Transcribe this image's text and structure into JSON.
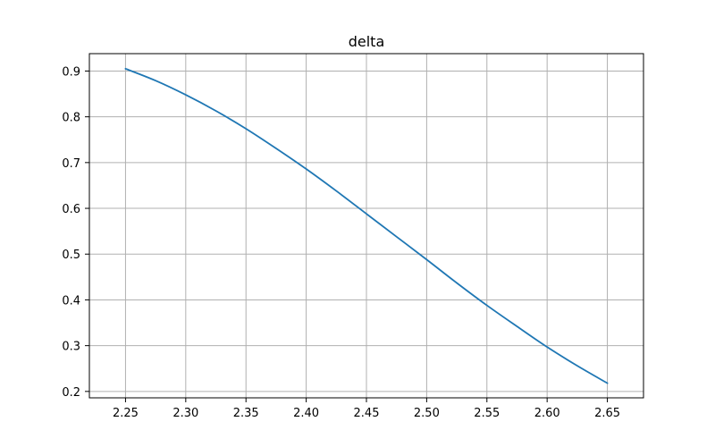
{
  "chart_data": {
    "type": "line",
    "title": "delta",
    "xlabel": "",
    "ylabel": "",
    "xlim": [
      2.22,
      2.68
    ],
    "ylim": [
      0.186,
      0.938
    ],
    "x_ticks": [
      2.25,
      2.3,
      2.35,
      2.4,
      2.45,
      2.5,
      2.55,
      2.6,
      2.65
    ],
    "x_tick_labels": [
      "2.25",
      "2.30",
      "2.35",
      "2.40",
      "2.45",
      "2.50",
      "2.55",
      "2.60",
      "2.65"
    ],
    "y_ticks": [
      0.2,
      0.3,
      0.4,
      0.5,
      0.6,
      0.7,
      0.8,
      0.9
    ],
    "y_tick_labels": [
      "0.2",
      "0.3",
      "0.4",
      "0.5",
      "0.6",
      "0.7",
      "0.8",
      "0.9"
    ],
    "grid": true,
    "series": [
      {
        "color": "#1f77b4",
        "x": [
          2.25,
          2.275,
          2.3,
          2.325,
          2.35,
          2.375,
          2.4,
          2.425,
          2.45,
          2.475,
          2.5,
          2.525,
          2.55,
          2.575,
          2.6,
          2.625,
          2.65
        ],
        "y": [
          0.905,
          0.879,
          0.848,
          0.813,
          0.774,
          0.731,
          0.686,
          0.638,
          0.588,
          0.538,
          0.488,
          0.437,
          0.388,
          0.342,
          0.297,
          0.256,
          0.218
        ]
      }
    ]
  },
  "colors": {
    "grid": "#b0b0b0",
    "axis": "#000000",
    "background": "#ffffff"
  }
}
